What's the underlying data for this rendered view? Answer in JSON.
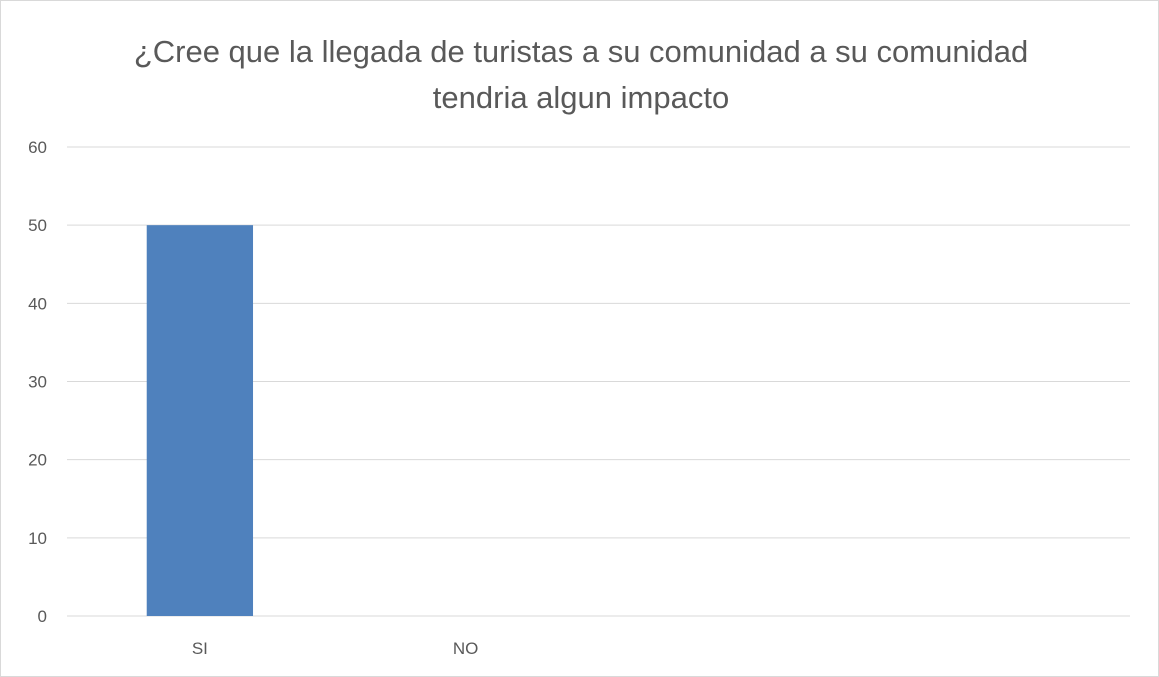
{
  "chart_data": {
    "type": "bar",
    "title": "¿Cree que la llegada de turistas a su comunidad a su comunidad tendria algun impacto",
    "categories": [
      "SI",
      "NO",
      "",
      ""
    ],
    "series": [
      {
        "values": [
          50,
          0,
          0,
          0
        ],
        "color": "#4f81bd"
      }
    ],
    "ylim": [
      0,
      60
    ],
    "yticks": [
      0,
      10,
      20,
      30,
      40,
      50,
      60
    ],
    "grid": true,
    "legend": "none",
    "gridline_color": "#d9d9d9",
    "text_color": "#595959"
  }
}
